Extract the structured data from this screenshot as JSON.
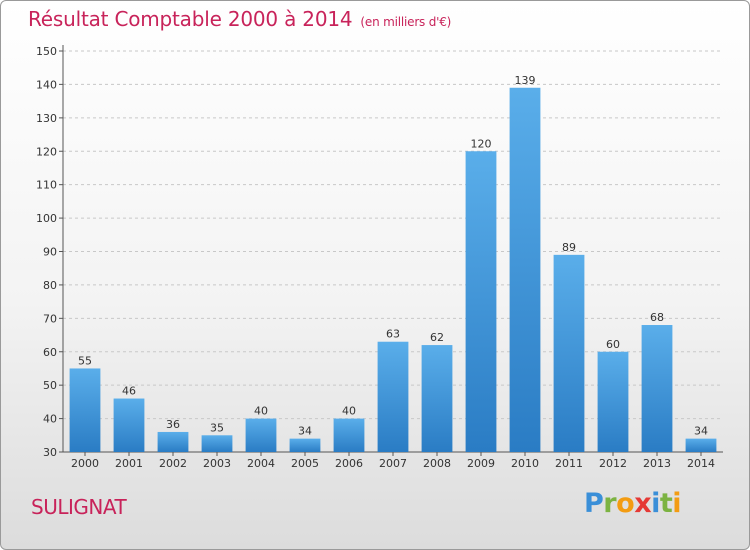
{
  "chart_data": {
    "type": "bar",
    "title": "Résultat Comptable 2000 à 2014",
    "unit": "(en milliers d'€)",
    "categories": [
      "2000",
      "2001",
      "2002",
      "2003",
      "2004",
      "2005",
      "2006",
      "2007",
      "2008",
      "2009",
      "2010",
      "2011",
      "2012",
      "2013",
      "2014"
    ],
    "values": [
      55,
      46,
      36,
      35,
      40,
      34,
      40,
      63,
      62,
      120,
      139,
      89,
      60,
      68,
      34
    ],
    "ylim": [
      30,
      150
    ],
    "yticks": [
      30,
      40,
      50,
      60,
      70,
      80,
      90,
      100,
      110,
      120,
      130,
      140,
      150
    ],
    "grid": true,
    "bar_color": "#3a8fd8"
  },
  "footer": {
    "commune": "SULIGNAT",
    "logo": [
      "P",
      "r",
      "o",
      "x",
      "i",
      "t",
      "i"
    ],
    "logo_colors": [
      "#3a8fd8",
      "#7cb342",
      "#f39c12",
      "#e53935",
      "#3a8fd8",
      "#7cb342",
      "#f39c12"
    ]
  },
  "title_color": "#c8235a"
}
